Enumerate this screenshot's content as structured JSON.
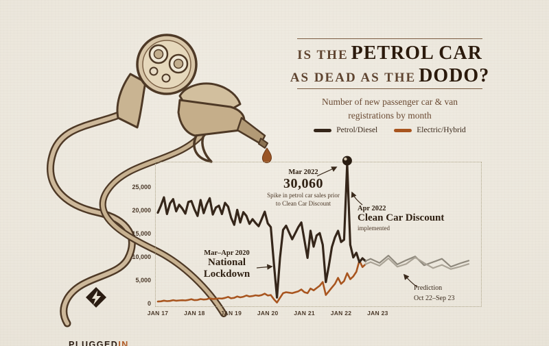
{
  "page": {
    "background": "#ebe6dc"
  },
  "header": {
    "title_line1_small": "IS THE",
    "title_line1_big": "PETROL CAR",
    "title_line2_small": "AS DEAD AS THE",
    "title_line2_big": "DODO?",
    "subtitle_line1": "Number of new passenger car & van",
    "subtitle_line2": "registrations by month"
  },
  "legend": {
    "items": [
      {
        "label": "Petrol/Diesel",
        "color": "#35261a"
      },
      {
        "label": "Electric/Hybrid",
        "color": "#a8551f"
      }
    ]
  },
  "annotations": {
    "spike": {
      "date": "Mar 2022",
      "value": "30,060",
      "desc1": "Spike in petrol car sales prior",
      "desc2": "to Clean Car Discount"
    },
    "discount": {
      "date": "Apr 2022",
      "title": "Clean Car Discount",
      "desc": "implemented"
    },
    "lockdown": {
      "date": "Mar–Apr 2020",
      "title1": "National",
      "title2": "Lockdown"
    },
    "prediction": {
      "line1": "Prediction",
      "line2": "Oct 22–Sep 23"
    }
  },
  "logo": {
    "text_main": "PLUGGED",
    "text_accent": "IN"
  },
  "chart_data": {
    "type": "line",
    "title": "Number of new passenger car & van registrations by month",
    "x_interval": "monthly",
    "x_range_actual": "Jan 2017 – Sep 2022",
    "x_range_prediction": "Oct 2022 – Sep 2023",
    "ylim": [
      0,
      30060
    ],
    "grid": false,
    "legend_position": "top",
    "plot_border": "dotted",
    "y_ticks": [
      {
        "label": "25,000",
        "value": 25000
      },
      {
        "label": "20,000",
        "value": 20000
      },
      {
        "label": "15,000",
        "value": 15000
      },
      {
        "label": "10,000",
        "value": 10000
      },
      {
        "label": "5,000",
        "value": 5000
      },
      {
        "label": "0",
        "value": 0
      }
    ],
    "x_ticks": [
      {
        "label": "JAN 17",
        "month_index": 0
      },
      {
        "label": "JAN 18",
        "month_index": 12
      },
      {
        "label": "JAN 19",
        "month_index": 24
      },
      {
        "label": "JAN 20",
        "month_index": 36
      },
      {
        "label": "JAN 21",
        "month_index": 48
      },
      {
        "label": "JAN 22",
        "month_index": 60
      },
      {
        "label": "JAN 23",
        "month_index": 72
      }
    ],
    "series": [
      {
        "name": "Electric/Hybrid",
        "kind": "actual",
        "color": "#a8551f",
        "width": 2.6,
        "data_name": "electric-line",
        "values": [
          420,
          470,
          620,
          520,
          560,
          720,
          610,
          660,
          710,
          660,
          760,
          920,
          720,
          770,
          960,
          860,
          910,
          1120,
          960,
          1010,
          1110,
          1060,
          1210,
          1420,
          1120,
          1220,
          1520,
          1320,
          1460,
          1720,
          1510,
          1610,
          1760,
          1660,
          1810,
          2120,
          1720,
          1820,
          920,
          210,
          1220,
          2220,
          2420,
          2320,
          2220,
          2420,
          2620,
          3020,
          2420,
          2220,
          3220,
          2820,
          3320,
          3820,
          4620,
          1820,
          2620,
          3420,
          4220,
          5520,
          4220,
          4820,
          6520,
          5220,
          5820,
          6820,
          9220,
          7820,
          8420
        ]
      },
      {
        "name": "Petrol/Diesel",
        "kind": "actual",
        "color": "#35261a",
        "width": 3.2,
        "data_name": "petrol-line",
        "values": [
          19500,
          21000,
          22800,
          19200,
          21500,
          22400,
          19800,
          21200,
          20400,
          19300,
          21800,
          22000,
          20200,
          18800,
          22200,
          19400,
          21300,
          22600,
          19100,
          20600,
          21000,
          19200,
          21600,
          20800,
          18400,
          16900,
          20100,
          17400,
          19600,
          18800,
          17100,
          18100,
          17300,
          16600,
          18100,
          19700,
          17200,
          16400,
          8600,
          1300,
          9800,
          15800,
          16700,
          15200,
          13800,
          15100,
          16400,
          17400,
          13600,
          9800,
          15600,
          12200,
          14600,
          15100,
          12600,
          4600,
          8100,
          12100,
          14200,
          15600,
          13200,
          13700,
          30060,
          12600,
          9900,
          10900,
          8900,
          9700,
          9100
        ]
      },
      {
        "name": "Petrol/Diesel (prediction)",
        "kind": "prediction",
        "join_series": 1,
        "color": "#8f897d",
        "width": 2.2,
        "data_name": "petrol-prediction-line",
        "values": [
          9600,
          8700,
          10300,
          8400,
          9300,
          10100,
          8200,
          8900,
          9600,
          7900,
          8600,
          9200
        ]
      },
      {
        "name": "Electric/Hybrid (prediction)",
        "kind": "prediction",
        "join_series": 0,
        "color": "#aaa396",
        "width": 2.2,
        "data_name": "electric-prediction-line",
        "values": [
          8900,
          8100,
          9700,
          7900,
          8500,
          9900,
          8700,
          7600,
          8300,
          7400,
          7900,
          8500
        ]
      }
    ],
    "markers": [
      {
        "label": "30,060 peak",
        "month_index": 62,
        "value": 30060
      }
    ]
  }
}
